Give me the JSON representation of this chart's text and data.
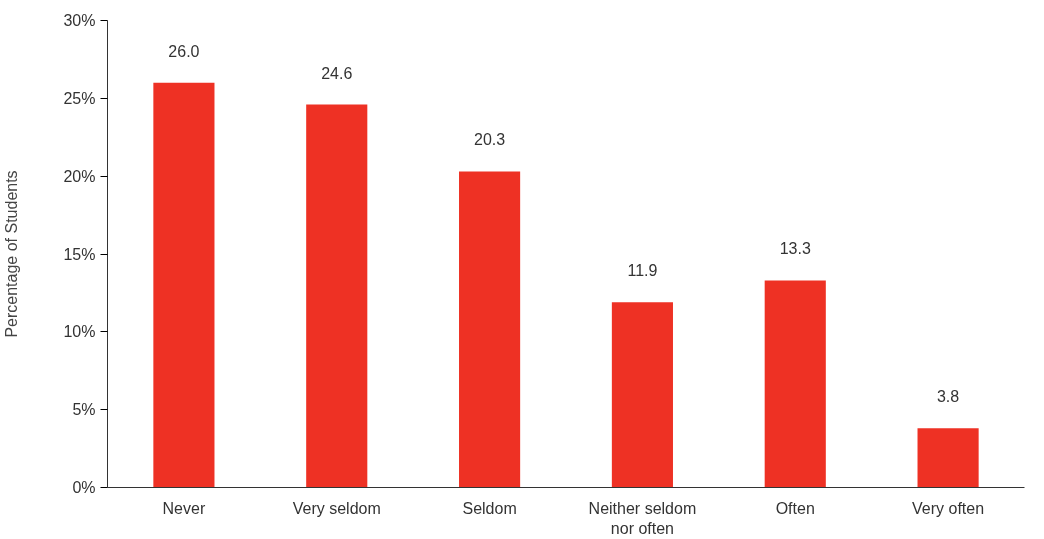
{
  "chart_data": {
    "type": "bar",
    "ylabel": "Percentage of Students",
    "categories": [
      "Never",
      "Very seldom",
      "Seldom",
      "Neither seldom nor often",
      "Often",
      "Very often"
    ],
    "values": [
      26.0,
      24.6,
      20.3,
      11.9,
      13.3,
      3.8
    ],
    "value_labels": [
      "26.0",
      "24.6",
      "20.3",
      "11.9",
      "13.3",
      "3.8"
    ],
    "color": "#ee3124",
    "ylim": [
      0,
      30
    ],
    "yticks": [
      {
        "value": 0,
        "label": "0%"
      },
      {
        "value": 5,
        "label": "5%"
      },
      {
        "value": 10,
        "label": "10%"
      },
      {
        "value": 15,
        "label": "15%"
      },
      {
        "value": 20,
        "label": "20%"
      },
      {
        "value": 25,
        "label": "25%"
      },
      {
        "value": 30,
        "label": "30%"
      }
    ],
    "grid": false
  }
}
